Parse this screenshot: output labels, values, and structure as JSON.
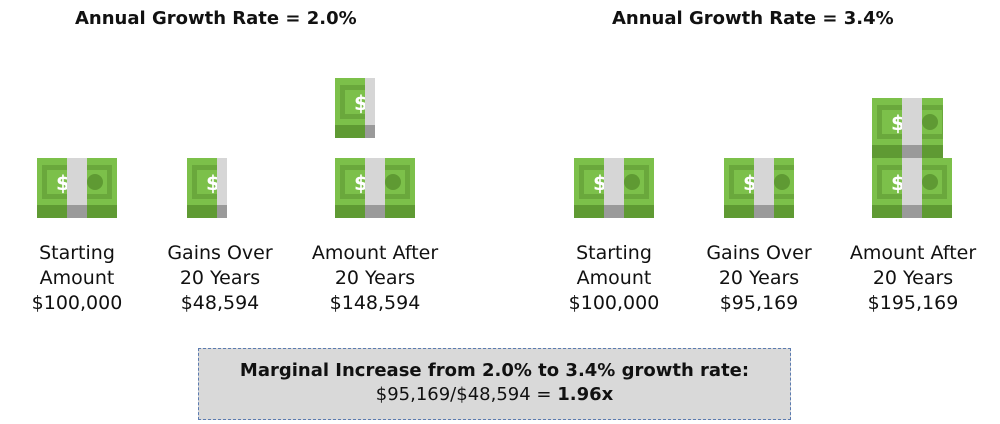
{
  "left": {
    "title": "Annual Growth Rate = 2.0%",
    "columns": [
      {
        "line1": "Starting",
        "line2": "Amount",
        "value": "$100,000"
      },
      {
        "line1": "Gains Over",
        "line2": "20 Years",
        "value": "$48,594"
      },
      {
        "line1": "Amount After",
        "line2": "20 Years",
        "value": "$148,594"
      }
    ]
  },
  "right": {
    "title": "Annual Growth Rate = 3.4%",
    "columns": [
      {
        "line1": "Starting",
        "line2": "Amount",
        "value": "$100,000"
      },
      {
        "line1": "Gains Over",
        "line2": "20 Years",
        "value": "$95,169"
      },
      {
        "line1": "Amount After",
        "line2": "20 Years",
        "value": "$195,169"
      }
    ]
  },
  "summary": {
    "heading": "Marginal Increase from 2.0% to 3.4% growth rate:",
    "formula": "$95,169/$48,594 = ",
    "result": "1.96x"
  },
  "icons": {
    "bill": "money-bill-stack-icon"
  },
  "colors": {
    "bill_green": "#7cc04a",
    "bill_dark": "#5f9a33",
    "band": "#d6d6d6"
  }
}
